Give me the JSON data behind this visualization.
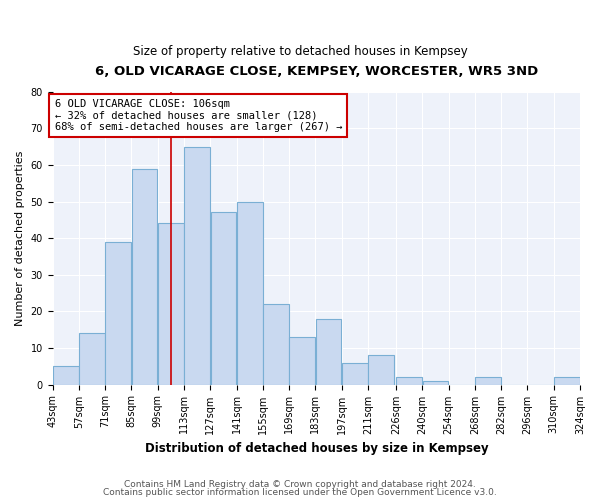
{
  "title1": "6, OLD VICARAGE CLOSE, KEMPSEY, WORCESTER, WR5 3ND",
  "title2": "Size of property relative to detached houses in Kempsey",
  "xlabel": "Distribution of detached houses by size in Kempsey",
  "ylabel": "Number of detached properties",
  "bar_values": [
    5,
    14,
    39,
    59,
    44,
    65,
    47,
    50,
    22,
    13,
    18,
    6,
    8,
    2,
    1,
    0,
    2,
    0,
    0,
    2
  ],
  "bin_edges": [
    43,
    57,
    71,
    85,
    99,
    113,
    127,
    141,
    155,
    169,
    183,
    197,
    211,
    226,
    240,
    254,
    268,
    282,
    296,
    310,
    324
  ],
  "x_tick_labels": [
    "43sqm",
    "57sqm",
    "71sqm",
    "85sqm",
    "99sqm",
    "113sqm",
    "127sqm",
    "141sqm",
    "155sqm",
    "169sqm",
    "183sqm",
    "197sqm",
    "211sqm",
    "226sqm",
    "240sqm",
    "254sqm",
    "268sqm",
    "282sqm",
    "296sqm",
    "310sqm",
    "324sqm"
  ],
  "bar_color": "#c9d9f0",
  "bar_edgecolor": "#7aafd4",
  "property_size": 106,
  "vline_color": "#cc0000",
  "annotation_text": "6 OLD VICARAGE CLOSE: 106sqm\n← 32% of detached houses are smaller (128)\n68% of semi-detached houses are larger (267) →",
  "annotation_box_color": "#cc0000",
  "ylim": [
    0,
    80
  ],
  "yticks": [
    0,
    10,
    20,
    30,
    40,
    50,
    60,
    70,
    80
  ],
  "footnote1": "Contains HM Land Registry data © Crown copyright and database right 2024.",
  "footnote2": "Contains public sector information licensed under the Open Government Licence v3.0.",
  "background_color": "#eef2fa",
  "title1_fontsize": 9.5,
  "title2_fontsize": 8.5,
  "xlabel_fontsize": 8.5,
  "ylabel_fontsize": 8,
  "tick_fontsize": 7,
  "annotation_fontsize": 7.5,
  "footnote_fontsize": 6.5
}
